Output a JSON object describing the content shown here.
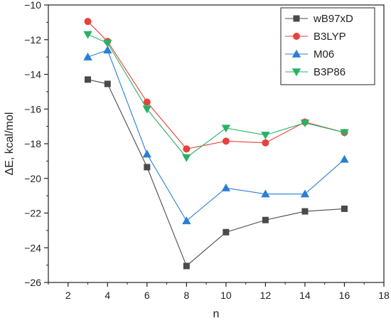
{
  "chart_data": {
    "type": "line",
    "title": "",
    "xlabel": "n",
    "ylabel": "ΔE, kcal/mol",
    "xlim": [
      1,
      18
    ],
    "ylim": [
      -26,
      -10
    ],
    "xticks": [
      2,
      4,
      6,
      8,
      10,
      12,
      14,
      16,
      18
    ],
    "yticks": [
      -10,
      -12,
      -14,
      -16,
      -18,
      -20,
      -22,
      -24,
      -26
    ],
    "x": [
      3,
      4,
      6,
      8,
      10,
      12,
      14,
      16
    ],
    "grid": false,
    "legend_position": "top-right",
    "series": [
      {
        "name": "wB97xD",
        "marker": "square",
        "color": "#4a4a4a",
        "values": [
          -14.3,
          -14.55,
          -19.35,
          -25.05,
          -23.1,
          -22.4,
          -21.9,
          -21.75
        ]
      },
      {
        "name": "B3LYP",
        "marker": "circle",
        "color": "#e8413c",
        "values": [
          -10.95,
          -12.1,
          -15.6,
          -18.3,
          -17.85,
          -17.95,
          -16.75,
          -17.35
        ]
      },
      {
        "name": "M06",
        "marker": "triangle-up",
        "color": "#2a7fd4",
        "values": [
          -13.0,
          -12.6,
          -18.6,
          -22.45,
          -20.55,
          -20.9,
          -20.9,
          -18.9
        ]
      },
      {
        "name": "B3P86",
        "marker": "triangle-down",
        "color": "#27b265",
        "values": [
          -11.7,
          -12.2,
          -16.0,
          -18.8,
          -17.1,
          -17.5,
          -16.8,
          -17.35
        ]
      }
    ]
  }
}
